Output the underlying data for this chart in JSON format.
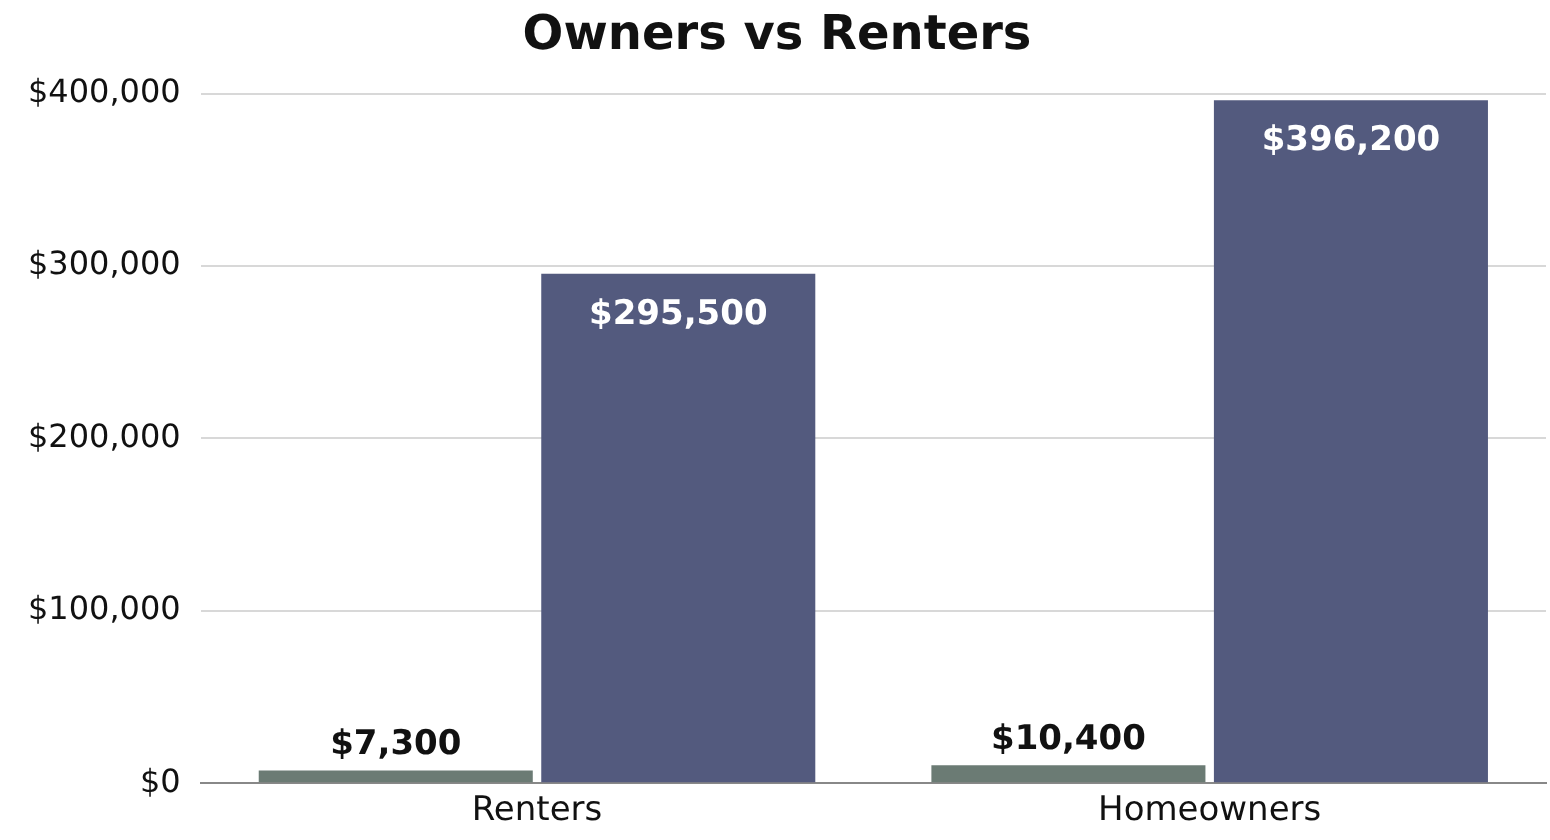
{
  "chart_data": {
    "type": "bar",
    "title": "Owners vs Renters",
    "categories": [
      "Renters",
      "Homeowners"
    ],
    "series": [
      {
        "color": "#6b7b74",
        "values": [
          7300,
          10400
        ],
        "value_labels": [
          "$7,300",
          "$10,400"
        ]
      },
      {
        "color": "#535a7e",
        "values": [
          295500,
          396200
        ],
        "value_labels": [
          "$295,500",
          "$396,200"
        ]
      }
    ],
    "ylim": [
      0,
      400000
    ],
    "yticks": [
      {
        "value": 0,
        "label": "$0"
      },
      {
        "value": 100000,
        "label": "$100,000"
      },
      {
        "value": 200000,
        "label": "$200,000"
      },
      {
        "value": 300000,
        "label": "$300,000"
      },
      {
        "value": 400000,
        "label": "$400,000"
      }
    ],
    "grid": "y",
    "legend": false
  }
}
